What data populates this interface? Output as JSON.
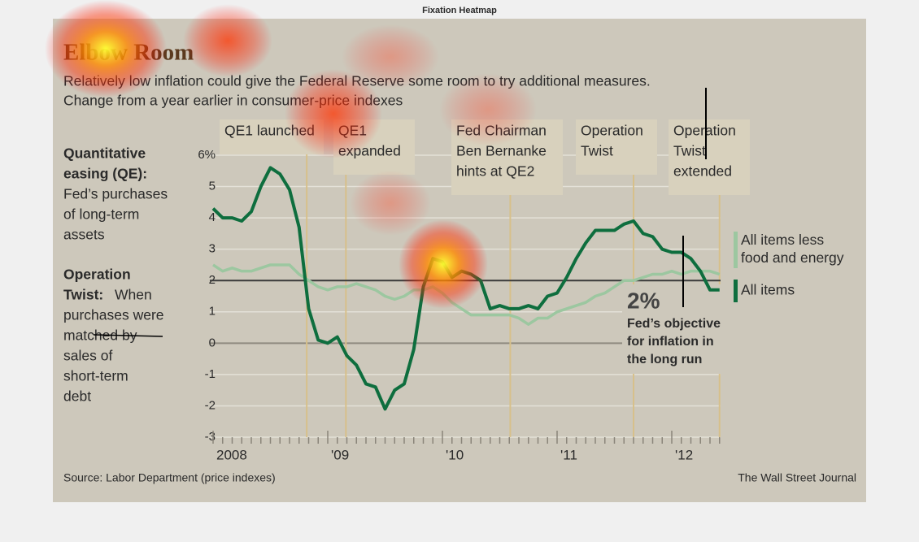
{
  "page_title": "Fixation Heatmap",
  "chart_data": {
    "type": "line",
    "title": "Elbow Room",
    "subtitle": [
      "Relatively low inflation could give the Federal Reserve some room to try additional measures.",
      "Change from a year earlier in consumer-price indexes"
    ],
    "categories": [
      "2008",
      null,
      null,
      null,
      null,
      null,
      null,
      null,
      null,
      null,
      null,
      null,
      "'09",
      null,
      null,
      null,
      null,
      null,
      null,
      null,
      null,
      null,
      null,
      null,
      "'10",
      null,
      null,
      null,
      null,
      null,
      null,
      null,
      null,
      null,
      null,
      null,
      "'11",
      null,
      null,
      null,
      null,
      null,
      null,
      null,
      null,
      null,
      null,
      null,
      "'12",
      null,
      null,
      null,
      null,
      null
    ],
    "series": [
      {
        "name": "All items less food and energy",
        "color": "#9cc7a0",
        "values": [
          2.5,
          2.3,
          2.4,
          2.3,
          2.3,
          2.4,
          2.5,
          2.5,
          2.5,
          2.2,
          2.0,
          1.8,
          1.7,
          1.8,
          1.8,
          1.9,
          1.8,
          1.7,
          1.5,
          1.4,
          1.5,
          1.7,
          1.7,
          1.8,
          1.6,
          1.3,
          1.1,
          0.9,
          0.9,
          0.9,
          0.9,
          0.9,
          0.8,
          0.6,
          0.8,
          0.8,
          1.0,
          1.1,
          1.2,
          1.3,
          1.5,
          1.6,
          1.8,
          2.0,
          2.0,
          2.1,
          2.2,
          2.2,
          2.3,
          2.2,
          2.3,
          2.3,
          2.3,
          2.2
        ]
      },
      {
        "name": "All items",
        "color": "#0e6e3e",
        "values": [
          4.3,
          4.0,
          4.0,
          3.9,
          4.2,
          5.0,
          5.6,
          5.4,
          4.9,
          3.7,
          1.1,
          0.1,
          0.0,
          0.2,
          -0.4,
          -0.7,
          -1.3,
          -1.4,
          -2.1,
          -1.5,
          -1.3,
          -0.2,
          1.8,
          2.7,
          2.6,
          2.1,
          2.3,
          2.2,
          2.0,
          1.1,
          1.2,
          1.1,
          1.1,
          1.2,
          1.1,
          1.5,
          1.6,
          2.1,
          2.7,
          3.2,
          3.6,
          3.6,
          3.6,
          3.8,
          3.9,
          3.5,
          3.4,
          3.0,
          2.9,
          2.9,
          2.7,
          2.3,
          1.7,
          1.7
        ]
      }
    ],
    "ylim": [
      -3,
      6
    ],
    "yticks": [
      -3,
      -2,
      -1,
      0,
      1,
      2,
      3,
      4,
      5,
      {
        "value": 6,
        "label": "6%"
      }
    ],
    "reference_line": {
      "value": 2,
      "label": "2%",
      "note": [
        "Fed’s objective",
        "for inflation in",
        "the long run"
      ]
    },
    "events": [
      {
        "lines": [
          "QE1 launched"
        ]
      },
      {
        "lines": [
          "QE1",
          "expanded"
        ]
      },
      {
        "lines": [
          "Fed Chairman",
          "Ben Bernanke",
          "hints at QE2"
        ]
      },
      {
        "lines": [
          "Operation",
          "Twist"
        ]
      },
      {
        "lines": [
          "Operation",
          "Twist",
          "extended"
        ]
      }
    ],
    "notes": [
      {
        "heading": [
          "Quantitative",
          "easing (QE):"
        ],
        "body": [
          "Fed’s purchases",
          "of long-term",
          "assets"
        ]
      },
      {
        "heading": [
          "Operation",
          "Twist:"
        ],
        "body": [
          "When",
          "purchases were",
          "matched by",
          "sales of",
          "short-term",
          "debt"
        ]
      }
    ],
    "source": "Source: Labor Department (price indexes)",
    "credit": "The Wall Street Journal"
  }
}
